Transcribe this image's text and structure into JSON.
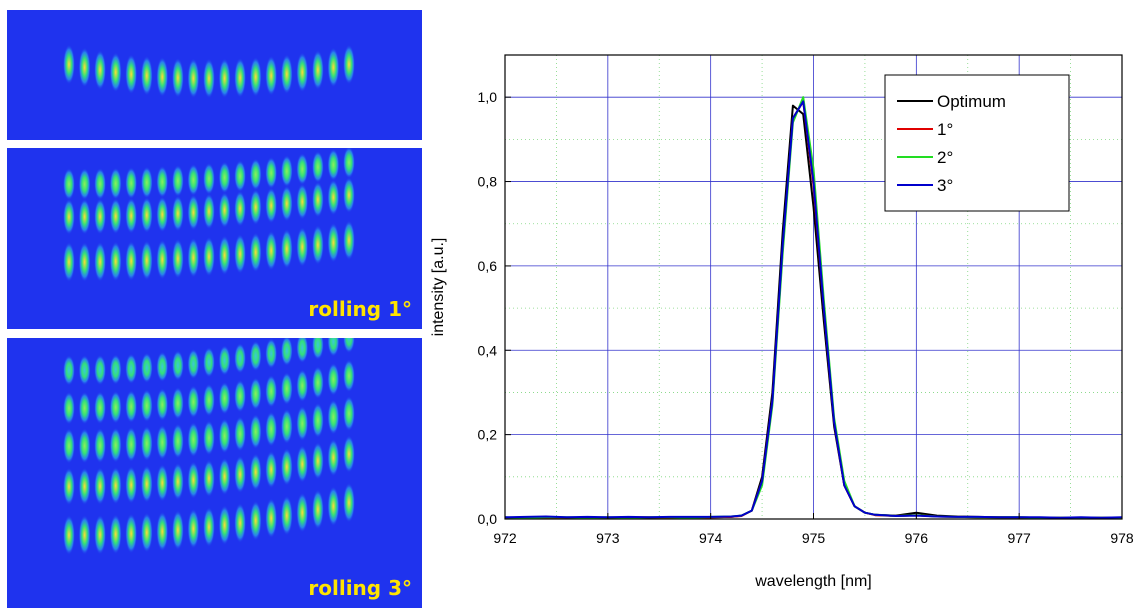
{
  "images": [
    {
      "id": "panel-1",
      "label": "",
      "rows": [
        0.45
      ],
      "shape": "curve"
    },
    {
      "id": "panel-2",
      "label": "rolling 1°",
      "rows": [
        0.2,
        0.38,
        0.63
      ],
      "shape": "tilt"
    },
    {
      "id": "panel-3",
      "label": "rolling 3°",
      "rows": [
        0.12,
        0.26,
        0.4,
        0.55,
        0.73
      ],
      "shape": "tilt"
    }
  ],
  "colors": {
    "image_background": "#1f33ee",
    "label": "#ffe400",
    "major_grid": "#3333cc",
    "minor_grid": "#7fd67f"
  },
  "chart_data": {
    "type": "line",
    "title": "",
    "xlabel": "wavelength [nm]",
    "ylabel": "intensity [a.u.]",
    "xlim": [
      972,
      978
    ],
    "ylim": [
      0,
      1.1
    ],
    "xticks": [
      972,
      973,
      974,
      975,
      976,
      977,
      978
    ],
    "xtick_labels": [
      "972",
      "973",
      "974",
      "975",
      "976",
      "977",
      "978"
    ],
    "yticks": [
      0,
      0.2,
      0.4,
      0.6,
      0.8,
      1.0
    ],
    "ytick_labels": [
      "0,0",
      "0,2",
      "0,4",
      "0,6",
      "0,8",
      "1,0"
    ],
    "grid": true,
    "legend_position": "top-right",
    "x": [
      972.0,
      972.2,
      972.4,
      972.6,
      972.8,
      973.0,
      973.2,
      973.4,
      973.6,
      973.8,
      974.0,
      974.2,
      974.3,
      974.4,
      974.5,
      974.6,
      974.7,
      974.8,
      974.9,
      975.0,
      975.1,
      975.2,
      975.3,
      975.4,
      975.5,
      975.6,
      975.8,
      976.0,
      976.2,
      976.4,
      976.6,
      976.8,
      977.0,
      977.2,
      977.4,
      977.6,
      977.8,
      978.0
    ],
    "series": [
      {
        "name": "Optimum",
        "color": "#000000",
        "values": [
          0.003,
          0.003,
          0.004,
          0.003,
          0.003,
          0.003,
          0.004,
          0.003,
          0.004,
          0.004,
          0.004,
          0.005,
          0.008,
          0.02,
          0.1,
          0.3,
          0.68,
          0.98,
          0.96,
          0.74,
          0.47,
          0.22,
          0.08,
          0.03,
          0.015,
          0.01,
          0.008,
          0.015,
          0.008,
          0.006,
          0.005,
          0.004,
          0.004,
          0.003,
          0.003,
          0.003,
          0.003,
          0.003
        ]
      },
      {
        "name": "1°",
        "color": "#e00000",
        "values": [
          0.003,
          0.004,
          0.003,
          0.003,
          0.004,
          0.003,
          0.004,
          0.004,
          0.003,
          0.004,
          0.004,
          0.005,
          0.007,
          0.02,
          0.09,
          0.28,
          0.64,
          0.95,
          0.99,
          0.79,
          0.5,
          0.23,
          0.08,
          0.03,
          0.015,
          0.009,
          0.007,
          0.009,
          0.006,
          0.005,
          0.004,
          0.004,
          0.003,
          0.003,
          0.003,
          0.003,
          0.003,
          0.003
        ]
      },
      {
        "name": "2°",
        "color": "#22dd22",
        "values": [
          0.004,
          0.003,
          0.004,
          0.004,
          0.003,
          0.004,
          0.003,
          0.004,
          0.004,
          0.003,
          0.005,
          0.006,
          0.008,
          0.02,
          0.08,
          0.27,
          0.63,
          0.94,
          1.0,
          0.83,
          0.52,
          0.24,
          0.09,
          0.03,
          0.015,
          0.01,
          0.007,
          0.009,
          0.006,
          0.005,
          0.004,
          0.004,
          0.004,
          0.003,
          0.003,
          0.003,
          0.003,
          0.003
        ]
      },
      {
        "name": "3°",
        "color": "#0000cc",
        "values": [
          0.004,
          0.005,
          0.006,
          0.004,
          0.005,
          0.004,
          0.005,
          0.004,
          0.005,
          0.005,
          0.005,
          0.006,
          0.008,
          0.02,
          0.09,
          0.28,
          0.65,
          0.95,
          0.99,
          0.8,
          0.5,
          0.23,
          0.08,
          0.03,
          0.015,
          0.01,
          0.007,
          0.008,
          0.006,
          0.005,
          0.005,
          0.004,
          0.004,
          0.004,
          0.003,
          0.004,
          0.003,
          0.004
        ]
      }
    ]
  }
}
